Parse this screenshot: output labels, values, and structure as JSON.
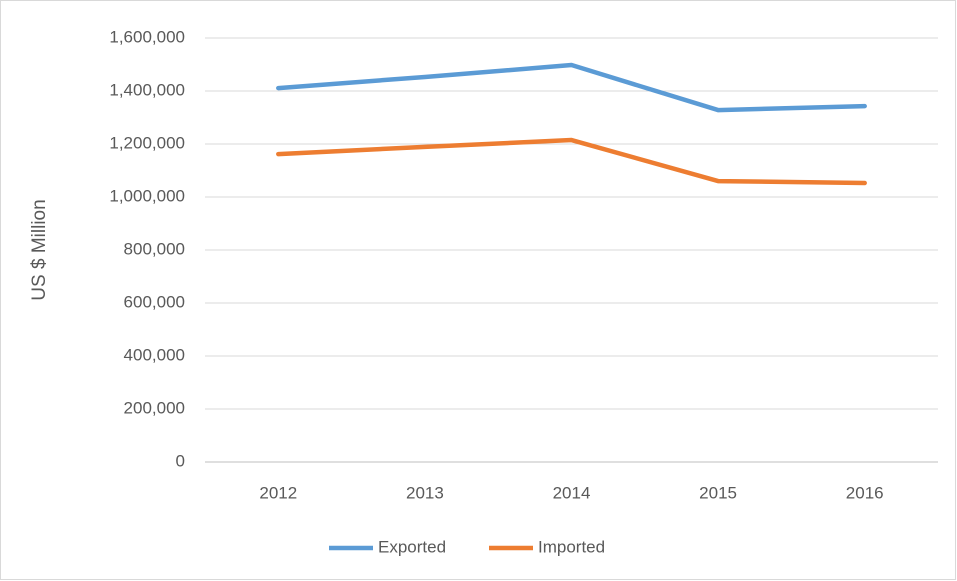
{
  "chart_data": {
    "type": "line",
    "y_label": "US $ Million",
    "categories": [
      "2012",
      "2013",
      "2014",
      "2015",
      "2016"
    ],
    "series": [
      {
        "name": "Exported",
        "color": "#5b9bd5",
        "values": [
          1411000,
          1453000,
          1498000,
          1328000,
          1343000
        ]
      },
      {
        "name": "Imported",
        "color": "#ed7d31",
        "values": [
          1162000,
          1189000,
          1215000,
          1060000,
          1053000
        ]
      }
    ],
    "ylim": [
      0,
      1600000
    ],
    "yticks": [
      0,
      {
        "value": 200000,
        "label": "200,000"
      },
      {
        "value": 400000,
        "label": "400,000"
      },
      {
        "value": 600000,
        "label": "600,000"
      },
      {
        "value": 800000,
        "label": "800,000"
      },
      {
        "value": 1000000,
        "label": "1,000,000"
      },
      {
        "value": 1200000,
        "label": "1,200,000"
      },
      {
        "value": 1400000,
        "label": "1,400,000"
      },
      {
        "value": 1600000,
        "label": "1,600,000"
      }
    ],
    "grid": true,
    "legend": "bottom"
  }
}
